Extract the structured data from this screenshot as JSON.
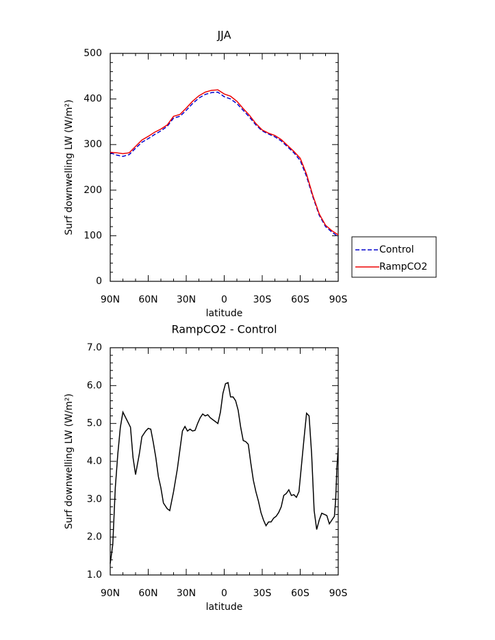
{
  "chart_data": [
    {
      "type": "line",
      "title": "JJA",
      "xlabel": "latitude",
      "ylabel": "Surf downwelling LW (W/m²)",
      "xlim": [
        90,
        -90
      ],
      "xticks": [
        {
          "value": 90,
          "label": "90N"
        },
        {
          "value": 60,
          "label": "60N"
        },
        {
          "value": 30,
          "label": "30N"
        },
        0,
        {
          "value": -30,
          "label": "30S"
        },
        {
          "value": -60,
          "label": "60S"
        },
        {
          "value": -90,
          "label": "90S"
        }
      ],
      "ylim": [
        0,
        500
      ],
      "yticks": [
        0,
        100,
        200,
        300,
        400,
        500
      ],
      "legend": "right",
      "x": [
        90,
        85,
        80,
        75,
        70,
        65,
        60,
        55,
        50,
        45,
        40,
        35,
        30,
        25,
        20,
        15,
        10,
        5,
        0,
        -5,
        -10,
        -15,
        -20,
        -25,
        -30,
        -35,
        -40,
        -45,
        -50,
        -55,
        -60,
        -65,
        -70,
        -75,
        -80,
        -85,
        -90
      ],
      "series": [
        {
          "name": "Control",
          "color": "#0000cc",
          "dash": true,
          "values": [
            282,
            277,
            274,
            278,
            292,
            305,
            313,
            322,
            330,
            340,
            358,
            362,
            375,
            390,
            402,
            410,
            414,
            415,
            405,
            400,
            390,
            375,
            360,
            343,
            330,
            323,
            317,
            308,
            295,
            282,
            265,
            230,
            185,
            145,
            120,
            108,
            98
          ]
        },
        {
          "name": "RampCO2",
          "color": "#ee0000",
          "dash": false,
          "values": [
            283,
            282,
            280,
            282,
            296,
            310,
            318,
            327,
            334,
            343,
            362,
            366,
            380,
            395,
            407,
            415,
            419,
            420,
            411,
            406,
            395,
            379,
            364,
            346,
            332,
            325,
            320,
            311,
            298,
            285,
            270,
            235,
            188,
            148,
            123,
            111,
            102
          ]
        }
      ]
    },
    {
      "type": "line",
      "title": "RampCO2 - Control",
      "xlabel": "latitude",
      "ylabel": "Surf downwelling LW (W/m²)",
      "xlim": [
        90,
        -90
      ],
      "xticks": [
        {
          "value": 90,
          "label": "90N"
        },
        {
          "value": 60,
          "label": "60N"
        },
        {
          "value": 30,
          "label": "30N"
        },
        0,
        {
          "value": -30,
          "label": "30S"
        },
        {
          "value": -60,
          "label": "60S"
        },
        {
          "value": -90,
          "label": "90S"
        }
      ],
      "ylim": [
        1,
        7
      ],
      "yticks": [
        {
          "value": 1,
          "label": "1.0"
        },
        {
          "value": 2,
          "label": "2.0"
        },
        {
          "value": 3,
          "label": "3.0"
        },
        {
          "value": 4,
          "label": "4.0"
        },
        {
          "value": 5,
          "label": "5.0"
        },
        {
          "value": 6,
          "label": "6.0"
        },
        {
          "value": 7,
          "label": "7.0"
        }
      ],
      "x": [
        90,
        88,
        86,
        84,
        82,
        80,
        77,
        74,
        72,
        70,
        67,
        65,
        62,
        60,
        58,
        56,
        54,
        52,
        50,
        48,
        45,
        43,
        40,
        37,
        35,
        33,
        31,
        29,
        27,
        25,
        23,
        21,
        19,
        17,
        15,
        13,
        11,
        9,
        7,
        5,
        3,
        1,
        -1,
        -3,
        -5,
        -7,
        -9,
        -11,
        -13,
        -15,
        -17,
        -19,
        -21,
        -23,
        -25,
        -27,
        -29,
        -31,
        -33,
        -35,
        -37,
        -39,
        -41,
        -43,
        -45,
        -47,
        -49,
        -51,
        -53,
        -55,
        -57,
        -59,
        -61,
        -63,
        -65,
        -67,
        -69,
        -71,
        -73,
        -75,
        -77,
        -79,
        -81,
        -83,
        -85,
        -87,
        -88,
        -89,
        -90
      ],
      "series": [
        {
          "color": "#000000",
          "dash": false,
          "values": [
            1.3,
            1.8,
            3.3,
            4.2,
            4.9,
            5.3,
            5.1,
            4.9,
            4.1,
            3.65,
            4.2,
            4.65,
            4.8,
            4.87,
            4.85,
            4.5,
            4.1,
            3.6,
            3.3,
            2.9,
            2.75,
            2.7,
            3.2,
            3.8,
            4.3,
            4.8,
            4.92,
            4.8,
            4.85,
            4.8,
            4.82,
            5.0,
            5.15,
            5.25,
            5.2,
            5.23,
            5.15,
            5.1,
            5.05,
            5.0,
            5.3,
            5.8,
            6.05,
            6.08,
            5.7,
            5.7,
            5.6,
            5.35,
            4.9,
            4.55,
            4.52,
            4.45,
            3.95,
            3.5,
            3.2,
            2.95,
            2.65,
            2.45,
            2.3,
            2.4,
            2.4,
            2.5,
            2.55,
            2.65,
            2.8,
            3.1,
            3.15,
            3.25,
            3.1,
            3.12,
            3.05,
            3.2,
            3.9,
            4.6,
            5.27,
            5.2,
            4.2,
            2.7,
            2.2,
            2.45,
            2.63,
            2.6,
            2.57,
            2.35,
            2.45,
            2.55,
            3.0,
            3.85,
            4.35
          ]
        }
      ]
    }
  ]
}
